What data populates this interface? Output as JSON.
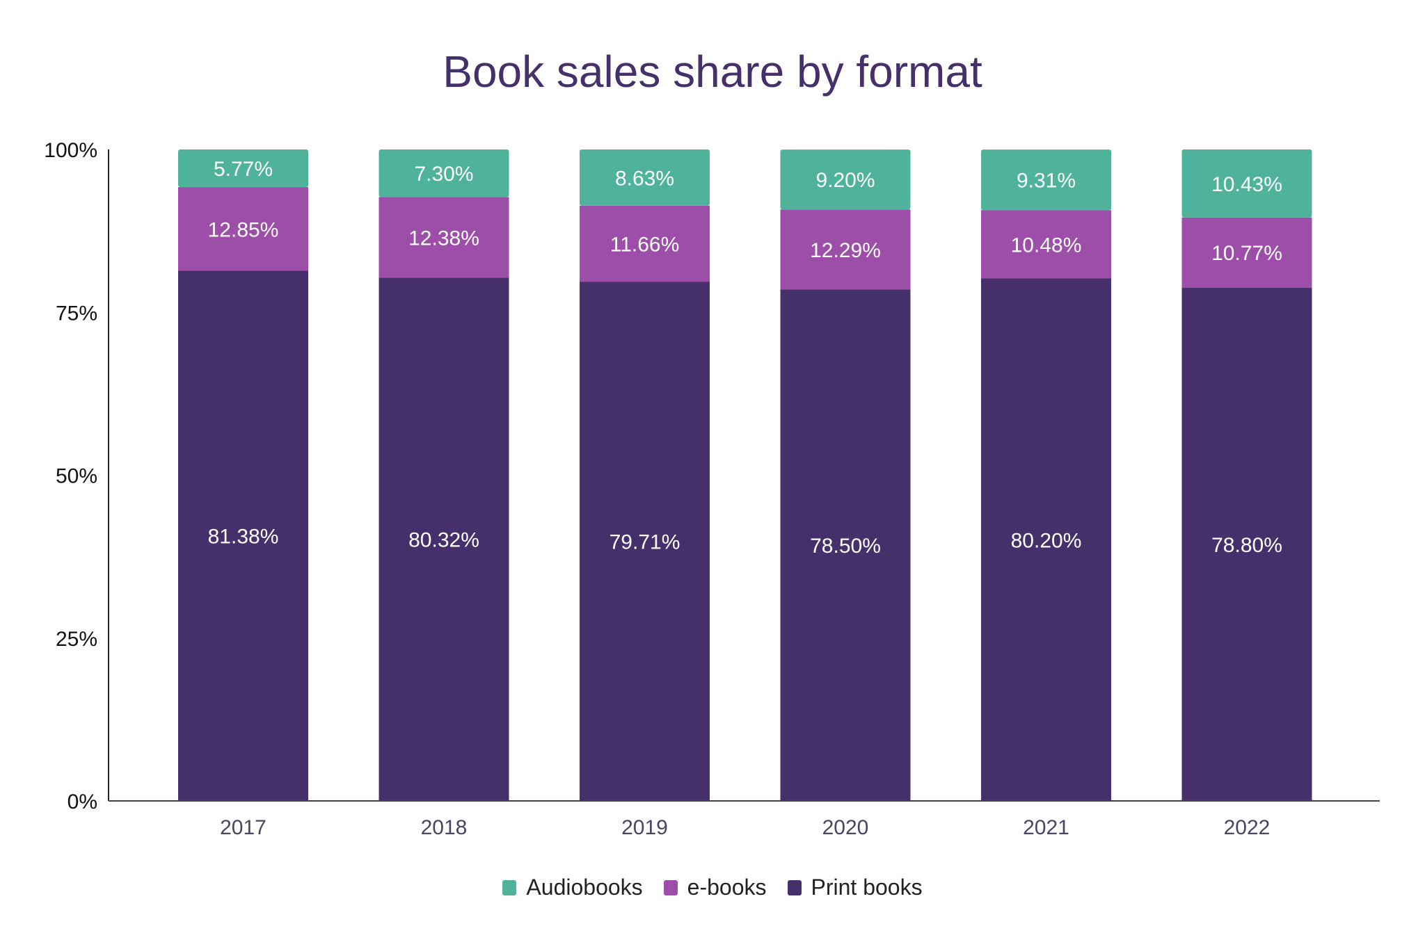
{
  "chart_data": {
    "type": "bar",
    "stacked": true,
    "title": "Book sales share by format",
    "categories": [
      "2017",
      "2018",
      "2019",
      "2020",
      "2021",
      "2022"
    ],
    "series": [
      {
        "name": "Print books",
        "color": "#45306b",
        "values": [
          81.38,
          80.32,
          79.71,
          78.5,
          80.2,
          78.8
        ],
        "labels": [
          "81.38%",
          "80.32%",
          "79.71%",
          "78.50%",
          "80.20%",
          "78.80%"
        ]
      },
      {
        "name": "e-books",
        "color": "#9c4ea8",
        "values": [
          12.85,
          12.38,
          11.66,
          12.29,
          10.48,
          10.77
        ],
        "labels": [
          "12.85%",
          "12.38%",
          "11.66%",
          "12.29%",
          "10.48%",
          "10.77%"
        ]
      },
      {
        "name": "Audiobooks",
        "color": "#4fb39b",
        "values": [
          5.77,
          7.3,
          8.63,
          9.2,
          9.31,
          10.43
        ],
        "labels": [
          "5.77%",
          "7.30%",
          "8.63%",
          "9.20%",
          "9.31%",
          "10.43%"
        ]
      }
    ],
    "ylim": [
      0,
      100
    ],
    "yticks": [
      "0%",
      "25%",
      "50%",
      "75%",
      "100%"
    ],
    "grid": false,
    "legend": "bottom",
    "legend_order": [
      "Audiobooks",
      "e-books",
      "Print books"
    ]
  }
}
